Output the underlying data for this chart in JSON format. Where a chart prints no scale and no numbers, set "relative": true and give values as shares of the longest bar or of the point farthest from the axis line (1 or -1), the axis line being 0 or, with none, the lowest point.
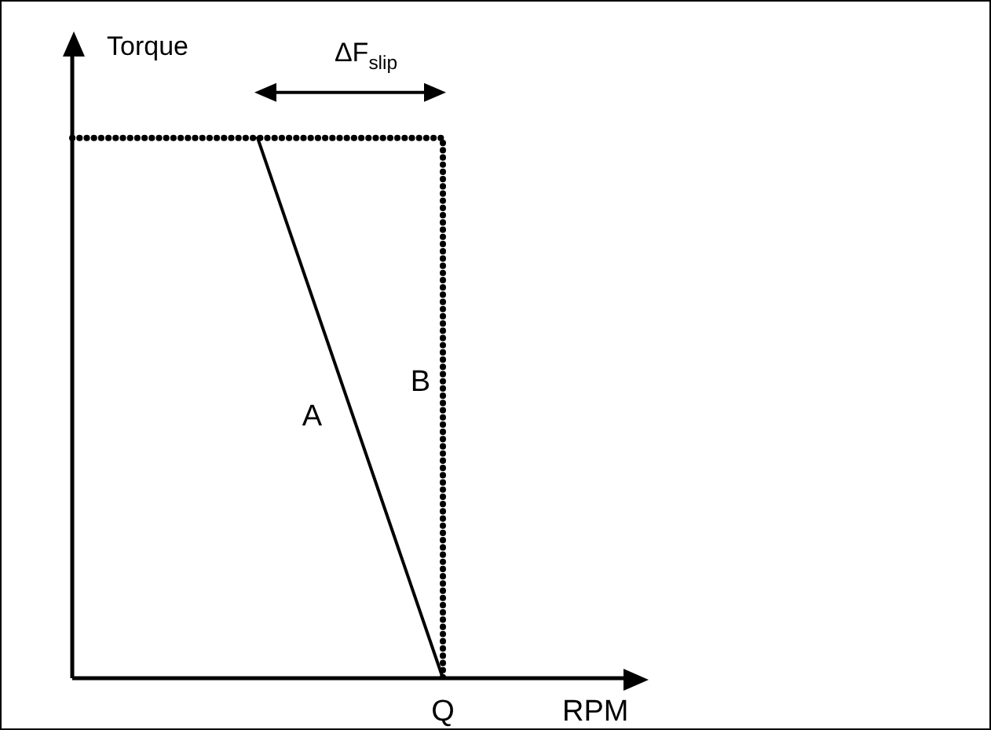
{
  "chart_data": {
    "type": "line",
    "relative": true,
    "xlabel": "RPM",
    "ylabel": "Torque",
    "categories": [
      null,
      null,
      null,
      null
    ],
    "grid": false,
    "legend": false,
    "annotations": [
      "ΔF$_{slip}$",
      "Q"
    ],
    "series": [
      {
        "name": "A",
        "color": "#000000",
        "values": [
          null,
          1,
          0,
          null
        ],
        "line_style": "solid"
      },
      {
        "name": "B",
        "type": "step",
        "color": "#000000",
        "values": [
          1,
          1,
          0,
          null
        ],
        "line_style": "dotted"
      }
    ]
  }
}
